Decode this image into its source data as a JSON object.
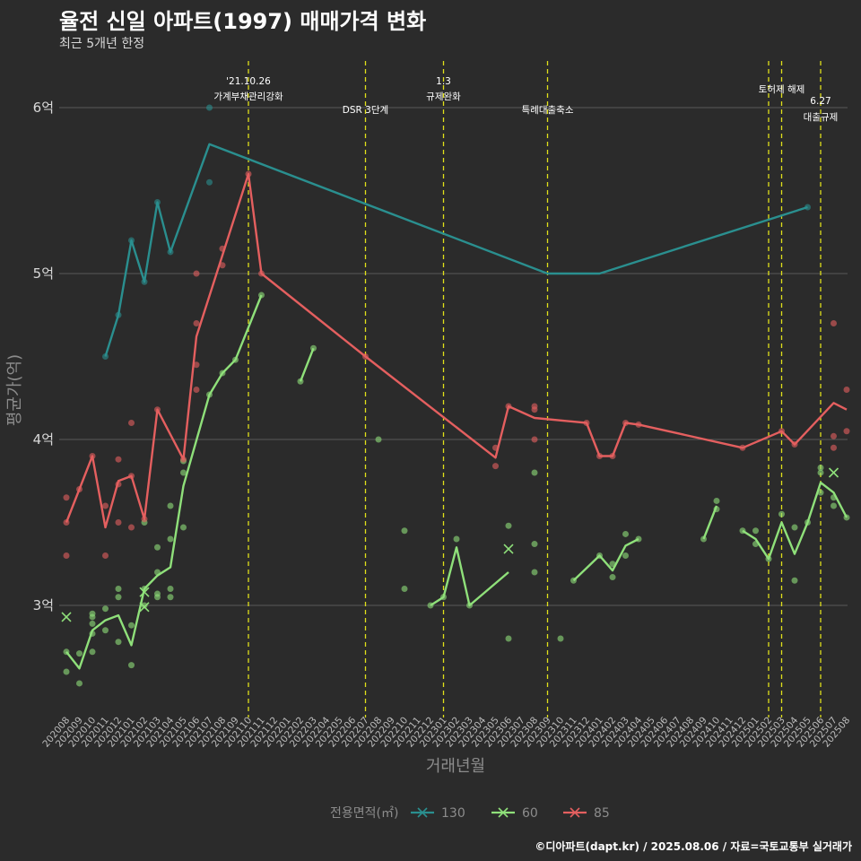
{
  "title": "율전 신일 아파트(1997) 매매가격 변화",
  "subtitle": "최근 5개년 한정",
  "footer": "©디아파트(dapt.kr) / 2025.08.06 / 자료=국토교통부 실거래가",
  "colors": {
    "130": "#2a8f8f",
    "60": "#8fe07a",
    "85": "#e45f5f",
    "vline": "#e0e01a",
    "grid": "#5a5a5a",
    "background": "#2b2b2b"
  },
  "chart_data": {
    "type": "line",
    "xlabel": "거래년월",
    "ylabel": "평균가(억)",
    "ylim": [
      2.35,
      6.4
    ],
    "yticks": [
      3,
      4,
      5,
      6
    ],
    "ytick_labels": [
      "3억",
      "4억",
      "5억",
      "6억"
    ],
    "x_categories": [
      "202008",
      "202009",
      "202010",
      "202011",
      "202012",
      "202101",
      "202102",
      "202103",
      "202104",
      "202105",
      "202106",
      "202107",
      "202108",
      "202109",
      "202110",
      "202111",
      "202112",
      "202201",
      "202202",
      "202203",
      "202204",
      "202205",
      "202206",
      "202207",
      "202208",
      "202209",
      "202210",
      "202211",
      "202212",
      "202301",
      "202302",
      "202303",
      "202304",
      "202305",
      "202306",
      "202307",
      "202308",
      "202309",
      "202310",
      "202311",
      "202312",
      "202401",
      "202402",
      "202403",
      "202404",
      "202405",
      "202406",
      "202407",
      "202408",
      "202409",
      "202410",
      "202411",
      "202412",
      "202501",
      "202502",
      "202503",
      "202504",
      "202505",
      "202506",
      "202507",
      "202508"
    ],
    "legend_title": "전용면적(㎡)",
    "legend_position": "bottom",
    "grid": true,
    "series": [
      {
        "name": "130",
        "color": "#2a8f8f",
        "lines": [
          [
            [
              "202011",
              4.5
            ],
            [
              "202012",
              4.75
            ],
            [
              "202101",
              5.2
            ],
            [
              "202102",
              4.95
            ],
            [
              "202103",
              5.43
            ],
            [
              "202104",
              5.13
            ],
            [
              "202107",
              5.78
            ],
            [
              "202309",
              5.0
            ],
            [
              "202401",
              5.0
            ],
            [
              "202505",
              5.4
            ]
          ]
        ],
        "points": [
          [
            4.5,
            "202011"
          ],
          [
            4.75,
            "202012"
          ],
          [
            5.2,
            "202101"
          ],
          [
            4.95,
            "202102"
          ],
          [
            5.43,
            "202103"
          ],
          [
            5.13,
            "202104"
          ],
          [
            6.0,
            "202107"
          ],
          [
            5.55,
            "202107"
          ],
          [
            5.4,
            "202505"
          ]
        ],
        "crosses": []
      },
      {
        "name": "60",
        "color": "#8fe07a",
        "lines": [
          [
            [
              "202008",
              2.72
            ],
            [
              "202009",
              2.62
            ],
            [
              "202010",
              2.85
            ],
            [
              "202011",
              2.91
            ],
            [
              "202012",
              2.94
            ],
            [
              "202101",
              2.76
            ],
            [
              "202102",
              3.1
            ],
            [
              "202103",
              3.18
            ],
            [
              "202104",
              3.23
            ],
            [
              "202105",
              3.72
            ],
            [
              "202107",
              4.27
            ],
            [
              "202108",
              4.4
            ],
            [
              "202109",
              4.48
            ],
            [
              "202111",
              4.87
            ]
          ],
          [
            [
              "202202",
              4.35
            ],
            [
              "202203",
              4.55
            ]
          ],
          [
            [
              "202212",
              3.0
            ],
            [
              "202301",
              3.05
            ],
            [
              "202302",
              3.35
            ],
            [
              "202303",
              3.0
            ],
            [
              "202306",
              3.2
            ]
          ],
          [
            [
              "202311",
              3.15
            ],
            [
              "202401",
              3.3
            ],
            [
              "202402",
              3.21
            ],
            [
              "202403",
              3.36
            ],
            [
              "202404",
              3.4
            ]
          ],
          [
            [
              "202409",
              3.4
            ],
            [
              "202410",
              3.6
            ]
          ],
          [
            [
              "202412",
              3.45
            ],
            [
              "202501",
              3.4
            ],
            [
              "202502",
              3.28
            ],
            [
              "202503",
              3.5
            ],
            [
              "202504",
              3.31
            ],
            [
              "202505",
              3.5
            ],
            [
              "202506",
              3.74
            ],
            [
              "202507",
              3.68
            ],
            [
              "202508",
              3.53
            ]
          ]
        ],
        "points": [
          [
            2.72,
            "202008"
          ],
          [
            2.6,
            "202008"
          ],
          [
            2.71,
            "202009"
          ],
          [
            2.53,
            "202009"
          ],
          [
            2.95,
            "202010"
          ],
          [
            2.93,
            "202010"
          ],
          [
            2.89,
            "202010"
          ],
          [
            2.83,
            "202010"
          ],
          [
            2.72,
            "202010"
          ],
          [
            2.98,
            "202011"
          ],
          [
            2.85,
            "202011"
          ],
          [
            3.1,
            "202012"
          ],
          [
            3.05,
            "202012"
          ],
          [
            2.78,
            "202012"
          ],
          [
            2.64,
            "202101"
          ],
          [
            2.88,
            "202101"
          ],
          [
            3.1,
            "202102"
          ],
          [
            3.0,
            "202102"
          ],
          [
            3.5,
            "202102"
          ],
          [
            3.35,
            "202103"
          ],
          [
            3.2,
            "202103"
          ],
          [
            3.07,
            "202103"
          ],
          [
            3.05,
            "202103"
          ],
          [
            3.1,
            "202104"
          ],
          [
            3.05,
            "202104"
          ],
          [
            3.4,
            "202104"
          ],
          [
            3.6,
            "202104"
          ],
          [
            3.47,
            "202105"
          ],
          [
            3.8,
            "202105"
          ],
          [
            3.87,
            "202105"
          ],
          [
            4.27,
            "202107"
          ],
          [
            4.4,
            "202108"
          ],
          [
            4.48,
            "202109"
          ],
          [
            4.87,
            "202111"
          ],
          [
            4.35,
            "202202"
          ],
          [
            4.55,
            "202203"
          ],
          [
            4.0,
            "202208"
          ],
          [
            3.45,
            "202210"
          ],
          [
            3.1,
            "202210"
          ],
          [
            3.0,
            "202212"
          ],
          [
            3.05,
            "202301"
          ],
          [
            3.4,
            "202302"
          ],
          [
            3.0,
            "202303"
          ],
          [
            3.48,
            "202306"
          ],
          [
            2.8,
            "202306"
          ],
          [
            3.8,
            "202308"
          ],
          [
            3.37,
            "202308"
          ],
          [
            3.2,
            "202308"
          ],
          [
            2.8,
            "202310"
          ],
          [
            3.15,
            "202311"
          ],
          [
            3.3,
            "202401"
          ],
          [
            3.25,
            "202402"
          ],
          [
            3.17,
            "202402"
          ],
          [
            3.43,
            "202403"
          ],
          [
            3.3,
            "202403"
          ],
          [
            3.4,
            "202404"
          ],
          [
            3.4,
            "202409"
          ],
          [
            3.63,
            "202410"
          ],
          [
            3.58,
            "202410"
          ],
          [
            3.45,
            "202412"
          ],
          [
            3.45,
            "202501"
          ],
          [
            3.37,
            "202501"
          ],
          [
            3.28,
            "202502"
          ],
          [
            3.55,
            "202503"
          ],
          [
            3.47,
            "202504"
          ],
          [
            3.15,
            "202504"
          ],
          [
            3.5,
            "202505"
          ],
          [
            3.83,
            "202506"
          ],
          [
            3.8,
            "202506"
          ],
          [
            3.68,
            "202506"
          ],
          [
            3.65,
            "202507"
          ],
          [
            3.6,
            "202507"
          ],
          [
            3.53,
            "202508"
          ]
        ],
        "crosses": [
          [
            2.93,
            "202008"
          ],
          [
            3.08,
            "202102"
          ],
          [
            2.99,
            "202102"
          ],
          [
            3.34,
            "202306"
          ],
          [
            3.8,
            "202507"
          ]
        ]
      },
      {
        "name": "85",
        "color": "#e45f5f",
        "lines": [
          [
            [
              "202008",
              3.5
            ],
            [
              "202009",
              3.7
            ],
            [
              "202010",
              3.9
            ],
            [
              "202011",
              3.47
            ],
            [
              "202012",
              3.75
            ],
            [
              "202101",
              3.78
            ],
            [
              "202102",
              3.52
            ],
            [
              "202103",
              4.18
            ],
            [
              "202105",
              3.88
            ],
            [
              "202106",
              4.62
            ],
            [
              "202110",
              5.6
            ],
            [
              "202111",
              5.0
            ],
            [
              "202207",
              4.5
            ],
            [
              "202305",
              3.89
            ],
            [
              "202306",
              4.2
            ],
            [
              "202308",
              4.13
            ],
            [
              "202312",
              4.1
            ],
            [
              "202401",
              3.9
            ],
            [
              "202402",
              3.9
            ],
            [
              "202403",
              4.1
            ],
            [
              "202404",
              4.09
            ],
            [
              "202412",
              3.95
            ],
            [
              "202503",
              4.05
            ],
            [
              "202504",
              3.97
            ],
            [
              "202507",
              4.22
            ],
            [
              "202508",
              4.18
            ]
          ]
        ],
        "points": [
          [
            3.5,
            "202008"
          ],
          [
            3.65,
            "202008"
          ],
          [
            3.3,
            "202008"
          ],
          [
            3.7,
            "202009"
          ],
          [
            3.9,
            "202010"
          ],
          [
            3.6,
            "202011"
          ],
          [
            3.3,
            "202011"
          ],
          [
            3.88,
            "202012"
          ],
          [
            3.73,
            "202012"
          ],
          [
            3.5,
            "202012"
          ],
          [
            4.1,
            "202101"
          ],
          [
            3.78,
            "202101"
          ],
          [
            3.47,
            "202101"
          ],
          [
            3.52,
            "202102"
          ],
          [
            4.18,
            "202103"
          ],
          [
            3.88,
            "202105"
          ],
          [
            5.0,
            "202106"
          ],
          [
            4.7,
            "202106"
          ],
          [
            4.45,
            "202106"
          ],
          [
            4.3,
            "202106"
          ],
          [
            5.15,
            "202108"
          ],
          [
            5.05,
            "202108"
          ],
          [
            5.6,
            "202110"
          ],
          [
            5.0,
            "202111"
          ],
          [
            4.5,
            "202207"
          ],
          [
            3.95,
            "202305"
          ],
          [
            3.84,
            "202305"
          ],
          [
            4.2,
            "202306"
          ],
          [
            4.18,
            "202308"
          ],
          [
            4.2,
            "202308"
          ],
          [
            4.0,
            "202308"
          ],
          [
            4.1,
            "202312"
          ],
          [
            3.9,
            "202401"
          ],
          [
            3.9,
            "202402"
          ],
          [
            4.1,
            "202403"
          ],
          [
            4.09,
            "202404"
          ],
          [
            3.95,
            "202412"
          ],
          [
            4.05,
            "202503"
          ],
          [
            3.97,
            "202504"
          ],
          [
            4.7,
            "202507"
          ],
          [
            4.02,
            "202507"
          ],
          [
            3.95,
            "202507"
          ],
          [
            4.3,
            "202508"
          ],
          [
            4.05,
            "202508"
          ]
        ],
        "crosses": []
      }
    ],
    "annotations": [
      {
        "x": "202110",
        "line1": "'21.10.26",
        "line2": "가계부채관리강화",
        "level": 0
      },
      {
        "x": "202207",
        "line1": "",
        "line2": "DSR 3단계",
        "level": 1
      },
      {
        "x": "202301",
        "line1": "1.3",
        "line2": "규제완화",
        "level": 0
      },
      {
        "x": "202309",
        "line1": "",
        "line2": "특례대출축소",
        "level": 1
      },
      {
        "x": "202502",
        "line1": "",
        "line2": "",
        "level": 0
      },
      {
        "x": "202503",
        "line1": "",
        "line2": "토허제 해제",
        "level": 0
      },
      {
        "x": "202506",
        "line1": "6.27",
        "line2": "대출규제",
        "level": 2
      }
    ]
  }
}
